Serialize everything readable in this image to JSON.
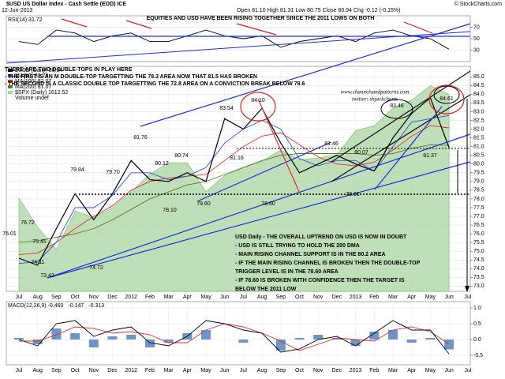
{
  "header": {
    "title": "$USD US Dollar Index - Cash Settle (EOD) ICE",
    "date": "12-Jun-2013",
    "quote": "Open 81.10 High 81.31 Low 80.75 Close 80.94 Chg -0.12 (-0.15%)",
    "credit": "© StockCharts.com"
  },
  "chart_data": [
    {
      "type": "line",
      "annotation": "EQUITIES AND USD HAVE BEEN RISING TOGETHER SINCE THE 2011 LOWS ON BOTH",
      "ylim": [
        10,
        90
      ],
      "yticks": [
        30,
        50,
        70
      ],
      "grid": true,
      "series": [
        {
          "name": "RSI(14) 31.72",
          "color": "#000000",
          "values": [
            45,
            40,
            65,
            60,
            45,
            55,
            60,
            45,
            45,
            55,
            65,
            55,
            50,
            55,
            35,
            45,
            50,
            55,
            45,
            60,
            65,
            55,
            50,
            31.72,
            null
          ]
        }
      ]
    },
    {
      "type": "line",
      "categories": [
        "Jul",
        "Aug",
        "Sep",
        "Oct",
        "Nov",
        "Dec",
        "2012",
        "Feb",
        "Mar",
        "Apr",
        "May",
        "Jun",
        "Jul",
        "Aug",
        "Sep",
        "Oct",
        "Nov",
        "Dec",
        "2013",
        "Feb",
        "Mar",
        "Apr",
        "May",
        "Jun",
        "Jul"
      ],
      "ylim": [
        72.7,
        85.6
      ],
      "yticks": [
        {
          "value": 73,
          "label": "73.0"
        },
        73.5,
        {
          "value": 74,
          "label": "74.0"
        },
        74.5,
        {
          "value": 75,
          "label": "75.0"
        },
        75.5,
        {
          "value": 76,
          "label": "76.0"
        },
        76.5,
        {
          "value": 77,
          "label": "77.0"
        },
        77.5,
        {
          "value": 78,
          "label": "78.0"
        },
        78.5,
        {
          "value": 79,
          "label": "79.0"
        },
        79.5,
        {
          "value": 80,
          "label": "80.0"
        },
        80.5,
        {
          "value": 81,
          "label": "81.0"
        },
        81.5,
        {
          "value": 82,
          "label": "82.0"
        },
        82.5,
        {
          "value": 83,
          "label": "83.0"
        },
        83.5,
        {
          "value": 84,
          "label": "84.0"
        },
        84.5,
        {
          "value": 85,
          "label": "85.0"
        }
      ],
      "grid": true,
      "y2lim": [
        1000,
        1700
      ],
      "series": [
        {
          "name": "$SPX (Daily) 1612.52",
          "color": "#a9d4a0",
          "axis": "y2",
          "style": "area",
          "values": [
            1290,
            1200,
            1130,
            1250,
            1230,
            1260,
            1310,
            1365,
            1400,
            1400,
            1310,
            1360,
            1385,
            1405,
            1440,
            1410,
            1415,
            1425,
            1500,
            1515,
            1570,
            1595,
            1640,
            1612.52,
            null
          ]
        },
        {
          "name": "MA(200) 81.07",
          "color": "#5a7a2a",
          "values": [
            75.5,
            75.6,
            75.8,
            76.0,
            76.3,
            76.8,
            77.4,
            78.0,
            78.4,
            78.8,
            79.0,
            79.4,
            79.8,
            80.2,
            80.5,
            80.6,
            80.6,
            80.6,
            80.6,
            80.5,
            80.6,
            80.9,
            81.1,
            81.07,
            null
          ]
        },
        {
          "name": "MA(100) 82.07",
          "color": "#e03030",
          "values": [
            74.8,
            74.9,
            75.5,
            76.3,
            77.0,
            77.6,
            78.5,
            79.0,
            79.2,
            79.3,
            79.4,
            80.2,
            81.0,
            81.6,
            81.8,
            81.1,
            80.4,
            80.0,
            79.9,
            80.1,
            80.8,
            81.6,
            82.2,
            82.07,
            null
          ]
        },
        {
          "name": "MA(50) 82.78",
          "color": "#3050e0",
          "values": [
            74.3,
            74.4,
            75.5,
            77.5,
            77.5,
            78.2,
            79.5,
            79.5,
            79.1,
            79.3,
            79.8,
            81.2,
            82.0,
            82.5,
            82.0,
            80.3,
            79.9,
            80.2,
            80.2,
            79.6,
            81.0,
            82.4,
            82.6,
            82.78,
            null
          ]
        },
        {
          "name": "$USD (Daily) 80.94",
          "color": "#000000",
          "values": [
            74.6,
            74.2,
            76.3,
            78.3,
            76.8,
            78.3,
            80.2,
            79.1,
            79.0,
            79.5,
            79.0,
            82.6,
            82.0,
            83.2,
            81.2,
            79.5,
            80.0,
            80.5,
            80.0,
            79.6,
            81.5,
            82.9,
            83.8,
            80.94,
            null
          ]
        }
      ],
      "legend_extra": "Volume undef",
      "price_labels": [
        "76.01",
        "76.72",
        "75.45",
        "74.11",
        "73.42",
        "79.84",
        "79.70",
        "74.72",
        "81.76",
        "80.12",
        "80.74",
        "78.10",
        "83.54",
        "84.10",
        "81.16",
        "79.60",
        "78.60",
        "81.46",
        "80.07",
        "78.91",
        "83.46",
        "84.61",
        "81.37"
      ],
      "notes": [
        "THERE ARE TWO DOUBLE-TOPS IN PLAY HERE",
        "- THE FIRST IS AN M DOUBLE-TOP TARGETTING THE 78.3 AREA NOW THAT 81.5 HAS BROKEN",
        "- THE SECOND IS A CLASSIC DOUBLE TOP TARGETTING THE 72.8 AREA ON A CONVICTION BREAK BELOW 78.6"
      ],
      "commentary": [
        "USD Daily - THE OVERALL UPTREND ON USD IS NOW IN DOUBT",
        "- USD IS STILL TRYING TO HOLD THE 200 DMA",
        "- MAIN RISING CHANNEL SUPPORT IS IN THE 80.2 AREA",
        "- IF THE MAIN RISING CHANNEL IS BROKEN THEN THE DOUBLE-TOP",
        "TRIGGER LEVEL IS IN THE 78.60 AREA",
        "- IF 78.60 IS BROKEN WITH CONFIDENCE THEN THE TARGET IS",
        "BELOW THE 2011 LOW"
      ],
      "watermark": [
        "www.channelsandpatterns.com",
        "twitter: shjackcharts"
      ]
    },
    {
      "type": "line",
      "categories": [
        "Jul",
        "Aug",
        "Sep",
        "Oct",
        "Nov",
        "Dec",
        "2012",
        "Feb",
        "Mar",
        "Apr",
        "May",
        "Jun",
        "Jul",
        "Aug",
        "Sep",
        "Oct",
        "Nov",
        "Dec",
        "2013",
        "Feb",
        "Mar",
        "Apr",
        "May",
        "Jun",
        "Jul"
      ],
      "ylim": [
        -0.8,
        1.2
      ],
      "yticks": [
        -0.5,
        {
          "value": 0,
          "label": "0.0"
        },
        0.5,
        {
          "value": 1,
          "label": "1.0"
        }
      ],
      "grid": true,
      "series": [
        {
          "name": "-0.313",
          "color": "#4a7ab8",
          "style": "histogram",
          "values": [
            0.05,
            -0.15,
            0.35,
            0.2,
            -0.25,
            0.1,
            0.15,
            -0.25,
            -0.1,
            0.2,
            0.3,
            0.0,
            -0.1,
            0.0,
            -0.35,
            0.05,
            0.15,
            0.05,
            -0.2,
            0.25,
            0.3,
            -0.1,
            0.05,
            -0.313,
            null
          ]
        },
        {
          "name": "-0.147",
          "color": "#e03030",
          "values": [
            -0.05,
            -0.05,
            0.15,
            0.4,
            0.35,
            0.2,
            0.25,
            0.15,
            -0.1,
            -0.1,
            0.3,
            0.5,
            0.4,
            0.2,
            -0.05,
            -0.35,
            -0.15,
            0.05,
            0.0,
            -0.05,
            0.3,
            0.4,
            0.25,
            -0.147,
            null
          ]
        },
        {
          "name": "MACD(12,26,9) -0.460",
          "color": "#000000",
          "values": [
            0.0,
            -0.2,
            0.5,
            0.6,
            0.1,
            0.3,
            0.4,
            -0.1,
            -0.2,
            0.1,
            0.6,
            0.5,
            0.3,
            0.2,
            -0.4,
            -0.3,
            0.0,
            0.1,
            -0.2,
            0.2,
            0.6,
            0.3,
            0.3,
            -0.46,
            null
          ]
        }
      ]
    }
  ]
}
